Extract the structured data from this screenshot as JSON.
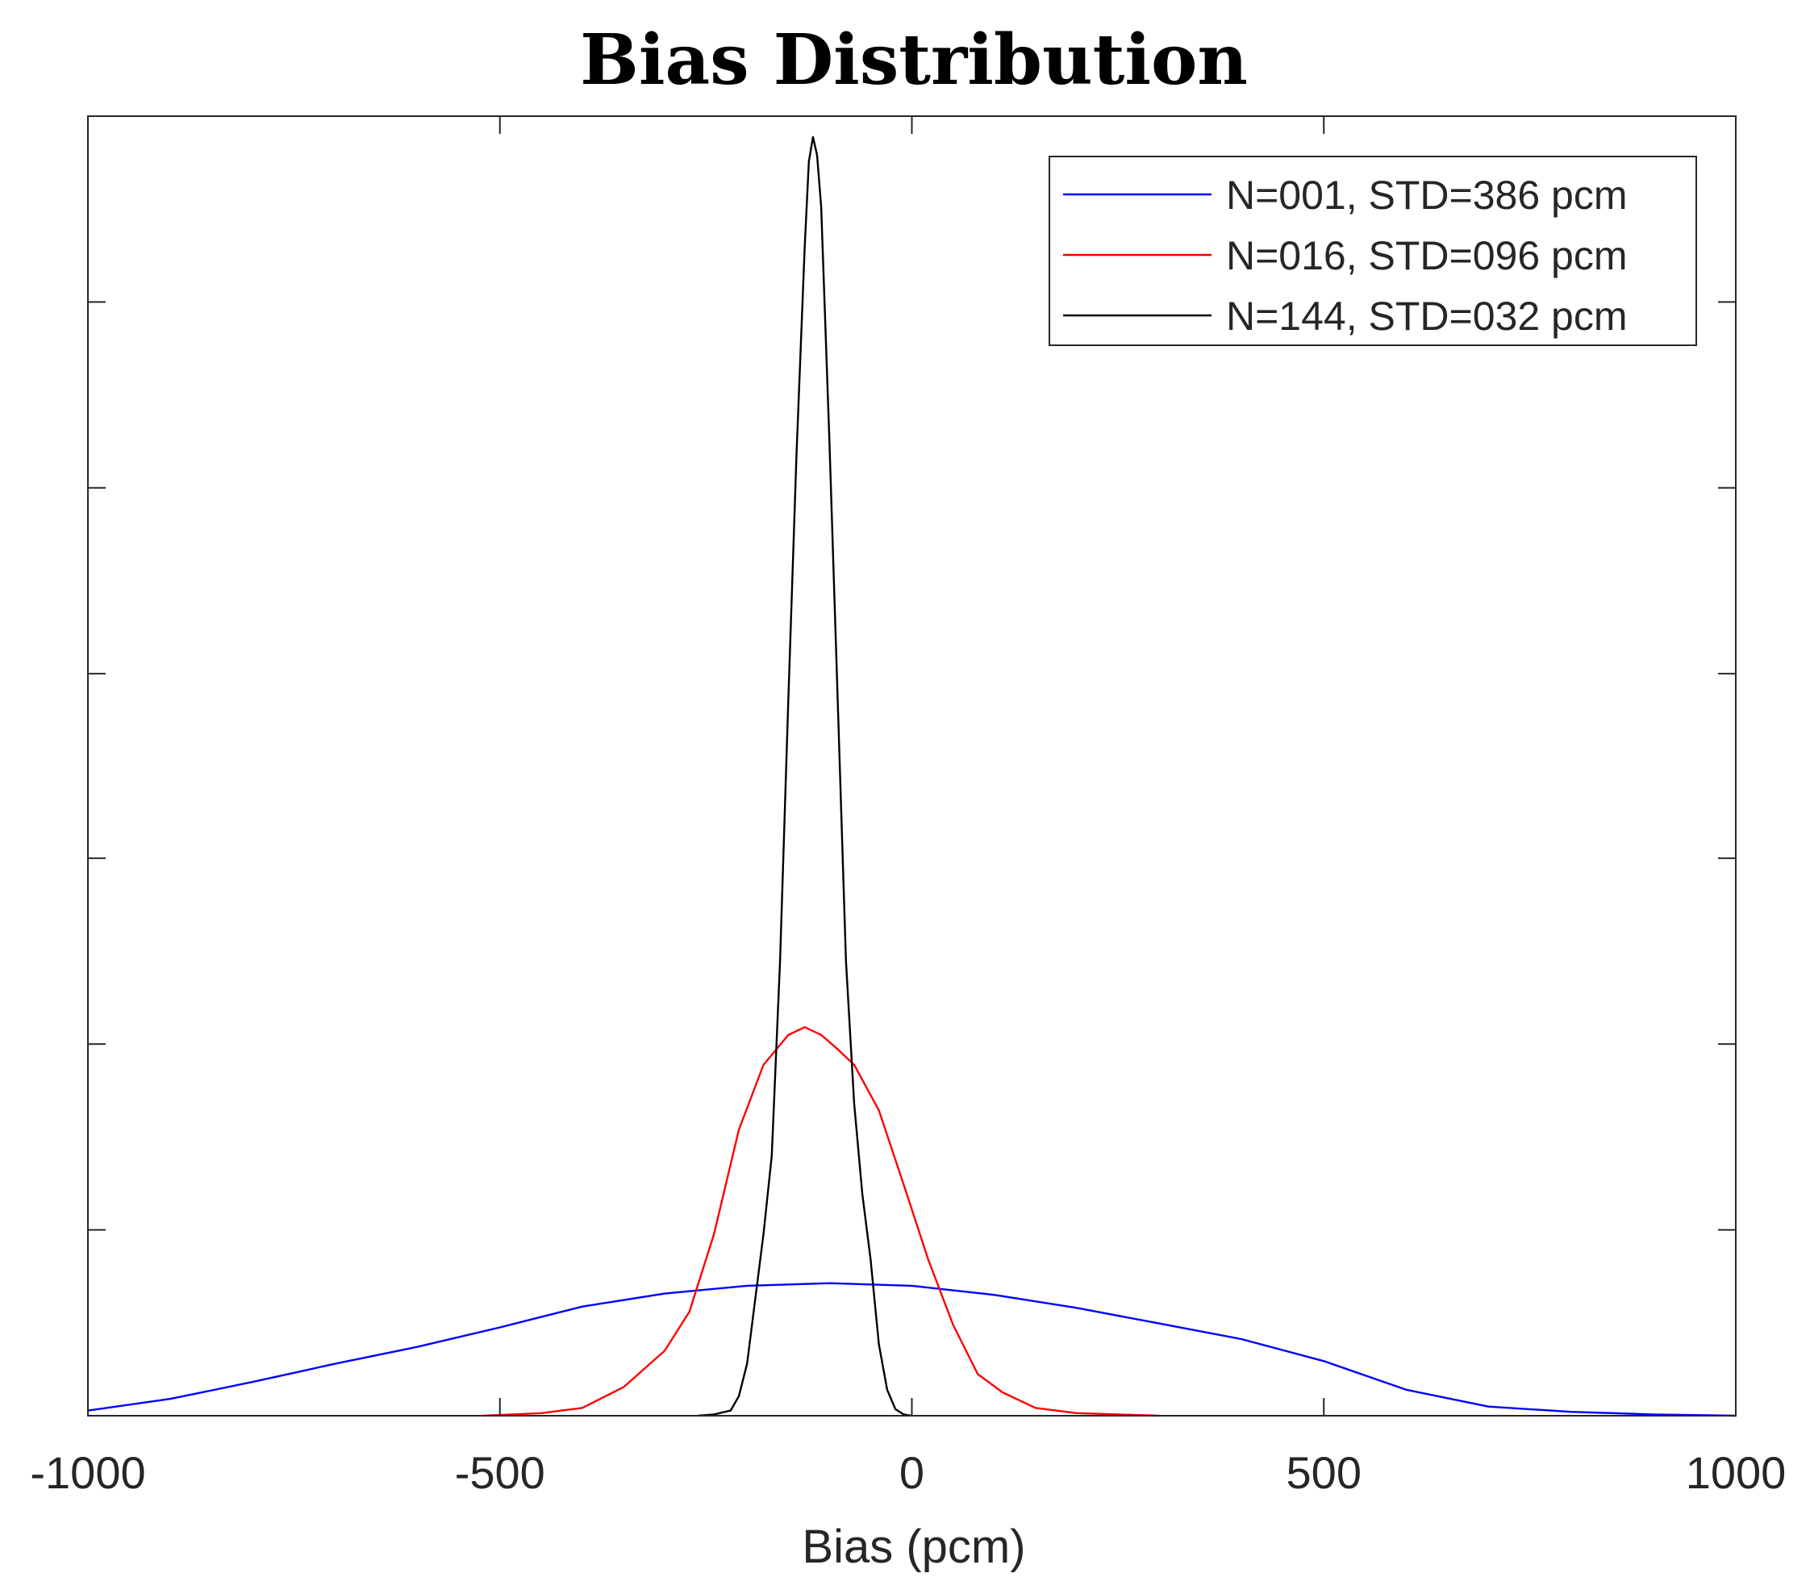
{
  "chart_data": {
    "type": "line",
    "title": "Bias Distribution",
    "xlabel": "Bias (pcm)",
    "ylabel": "",
    "xlim": [
      -1000,
      1000
    ],
    "ylim": [
      0,
      1
    ],
    "xticks": [
      -1000,
      -500,
      0,
      500,
      1000
    ],
    "xtick_labels": [
      "-1000",
      "-500",
      "0",
      "500",
      "1000"
    ],
    "yticks": [
      0,
      0.143,
      0.286,
      0.429,
      0.571,
      0.714,
      0.857,
      1
    ],
    "ytick_labels": [],
    "grid": false,
    "legend_position": "top-right",
    "series": [
      {
        "name": "N=001, STD=386 pcm",
        "color": "#0000ff",
        "x": [
          -1000,
          -900,
          -800,
          -700,
          -600,
          -500,
          -400,
          -300,
          -200,
          -100,
          0,
          100,
          200,
          300,
          400,
          500,
          600,
          700,
          800,
          900,
          1000
        ],
        "y": [
          0.004,
          0.013,
          0.026,
          0.04,
          0.053,
          0.068,
          0.084,
          0.094,
          0.1,
          0.102,
          0.1,
          0.093,
          0.083,
          0.071,
          0.059,
          0.042,
          0.02,
          0.007,
          0.003,
          0.001,
          0
        ]
      },
      {
        "name": "N=016, STD=096 pcm",
        "color": "#ff0000",
        "x": [
          -520,
          -450,
          -400,
          -350,
          -300,
          -270,
          -240,
          -210,
          -180,
          -150,
          -130,
          -110,
          -90,
          -70,
          -40,
          -10,
          20,
          50,
          80,
          110,
          150,
          200,
          250,
          300
        ],
        "y": [
          0,
          0.002,
          0.006,
          0.022,
          0.05,
          0.08,
          0.14,
          0.22,
          0.27,
          0.293,
          0.299,
          0.293,
          0.282,
          0.27,
          0.235,
          0.178,
          0.12,
          0.07,
          0.032,
          0.018,
          0.006,
          0.002,
          0.001,
          0
        ]
      },
      {
        "name": "N=144, STD=032 pcm",
        "color": "#000000",
        "x": [
          -260,
          -240,
          -220,
          -210,
          -200,
          -190,
          -180,
          -170,
          -160,
          -150,
          -140,
          -130,
          -125,
          -120,
          -115,
          -110,
          -100,
          -90,
          -80,
          -70,
          -60,
          -50,
          -40,
          -30,
          -20,
          -10,
          0
        ],
        "y": [
          0,
          0.001,
          0.004,
          0.015,
          0.04,
          0.09,
          0.14,
          0.2,
          0.35,
          0.55,
          0.74,
          0.9,
          0.965,
          0.984,
          0.97,
          0.93,
          0.75,
          0.55,
          0.35,
          0.24,
          0.17,
          0.12,
          0.055,
          0.02,
          0.005,
          0.001,
          0
        ]
      }
    ]
  }
}
